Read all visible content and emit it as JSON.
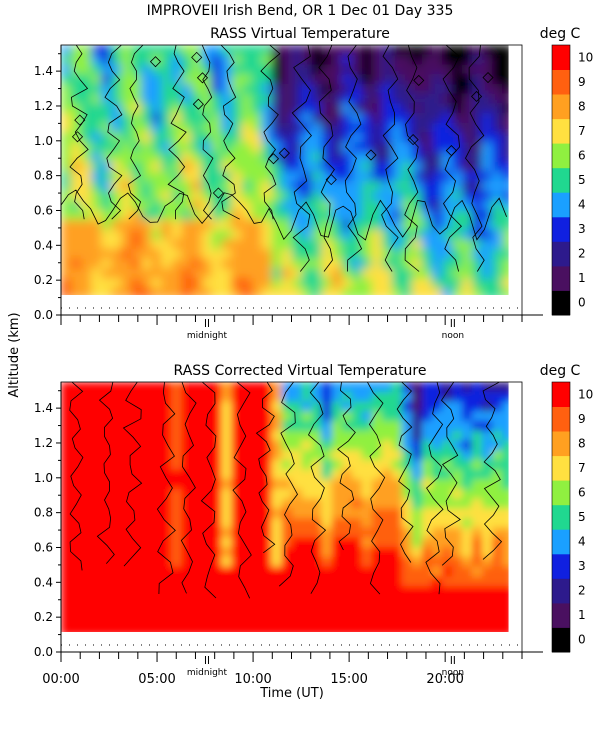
{
  "title": "IMPROVEII  Irish Bend, OR    1 Dec 01 Day 335",
  "ylabel": "Altitude (km)",
  "xlabel": "Time (UT)",
  "markers": {
    "midnight": "midnight",
    "noon": "noon"
  },
  "chart_data": [
    {
      "type": "heatmap",
      "title": "RASS Virtual Temperature",
      "colorbar_label": "deg C",
      "colorbar_ticks": [
        "0",
        "1",
        "2",
        "3",
        "4",
        "5",
        "6",
        "7",
        "8",
        "9",
        "10"
      ],
      "colorbar_colors": [
        "#000000",
        "#4a1060",
        "#2d1a8c",
        "#1020e0",
        "#1aa0ff",
        "#20d890",
        "#90f040",
        "#ffe040",
        "#ffa020",
        "#ff6010",
        "#ff0000"
      ],
      "xlim": [
        0,
        24
      ],
      "ylim": [
        0,
        1.55
      ],
      "yticks": [
        "0.0",
        "0.2",
        "0.4",
        "0.6",
        "0.8",
        "1.0",
        "1.2",
        "1.4"
      ],
      "x_tick_labels": [],
      "summary": "Warm 7-9 deg C air below ~0.6 km from 00:00-11:00 UT; cooler 2-5 deg C aloft after 11:00 UT, lowest 0-3 deg C near 1.0-1.4 km around 20:00-23:00 UT",
      "midnight_x": 7.6,
      "noon_x": 20.4
    },
    {
      "type": "heatmap",
      "title": "RASS Corrected Virtual Temperature",
      "colorbar_label": "deg C",
      "colorbar_ticks": [
        "0",
        "1",
        "2",
        "3",
        "4",
        "5",
        "6",
        "7",
        "8",
        "9",
        "10"
      ],
      "colorbar_colors": [
        "#000000",
        "#4a1060",
        "#2d1a8c",
        "#1020e0",
        "#1aa0ff",
        "#20d890",
        "#90f040",
        "#ffe040",
        "#ffa020",
        "#ff6010",
        "#ff0000"
      ],
      "xlim": [
        0,
        24
      ],
      "ylim": [
        0,
        1.55
      ],
      "yticks": [
        "0.0",
        "0.2",
        "0.4",
        "0.6",
        "0.8",
        "1.0",
        "1.2",
        "1.4"
      ],
      "x_tick_labels": [
        "00:00",
        "05:00",
        "10:00",
        "15:00",
        "20:00"
      ],
      "x_tick_values": [
        0,
        5,
        10,
        15,
        20
      ],
      "summary": "Mostly 10+ deg C throughout; cooler streaks of 5-8 deg C aloft after 12:00 UT",
      "midnight_x": 7.6,
      "noon_x": 20.4
    }
  ]
}
